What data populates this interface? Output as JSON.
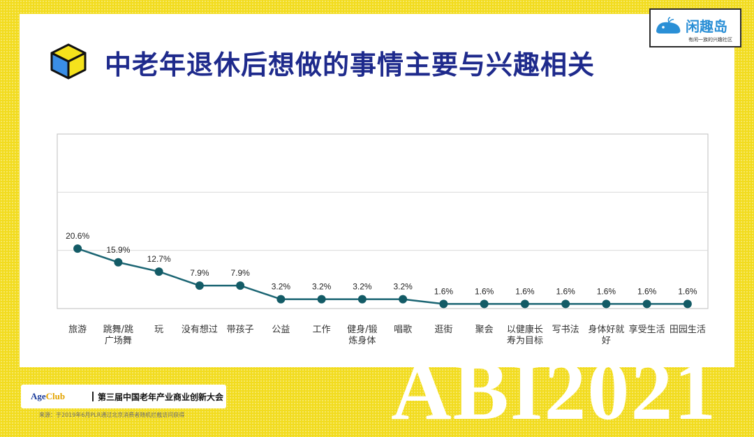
{
  "slide": {
    "title": "中老年退休后想做的事情主要与兴趣相关",
    "watermark": "ABI2021",
    "source": "来源：于2019年6月PLR通过北京消费者随机拦截访问获得"
  },
  "logo": {
    "name": "闲趣岛",
    "tagline": "有闲一族的兴趣社区"
  },
  "badge": {
    "brand_age": "Age",
    "brand_club": "Club",
    "text": "第三届中国老年产业商业创新大会"
  },
  "colors": {
    "background": "#f2dc1f",
    "title": "#1e2a8c",
    "line": "#1b6573",
    "marker": "#135b66"
  },
  "chart_data": {
    "type": "line",
    "title": "",
    "xlabel": "",
    "ylabel": "",
    "ylim": [
      0,
      60
    ],
    "grid": true,
    "categories": [
      [
        "旅游"
      ],
      [
        "跳舞/跳",
        "广场舞"
      ],
      [
        "玩"
      ],
      [
        "没有想过"
      ],
      [
        "带孩子"
      ],
      [
        "公益"
      ],
      [
        "工作"
      ],
      [
        "健身/锻",
        "炼身体"
      ],
      [
        "唱歌"
      ],
      [
        "逛街"
      ],
      [
        "聚会"
      ],
      [
        "以健康长",
        "寿为目标"
      ],
      [
        "写书法"
      ],
      [
        "身体好就",
        "好"
      ],
      [
        "享受生活"
      ],
      [
        "田园生活"
      ]
    ],
    "values": [
      20.6,
      15.9,
      12.7,
      7.9,
      7.9,
      3.2,
      3.2,
      3.2,
      3.2,
      1.6,
      1.6,
      1.6,
      1.6,
      1.6,
      1.6,
      1.6
    ],
    "data_labels": [
      "20.6%",
      "15.9%",
      "12.7%",
      "7.9%",
      "7.9%",
      "3.2%",
      "3.2%",
      "3.2%",
      "3.2%",
      "1.6%",
      "1.6%",
      "1.6%",
      "1.6%",
      "1.6%",
      "1.6%",
      "1.6%"
    ]
  }
}
